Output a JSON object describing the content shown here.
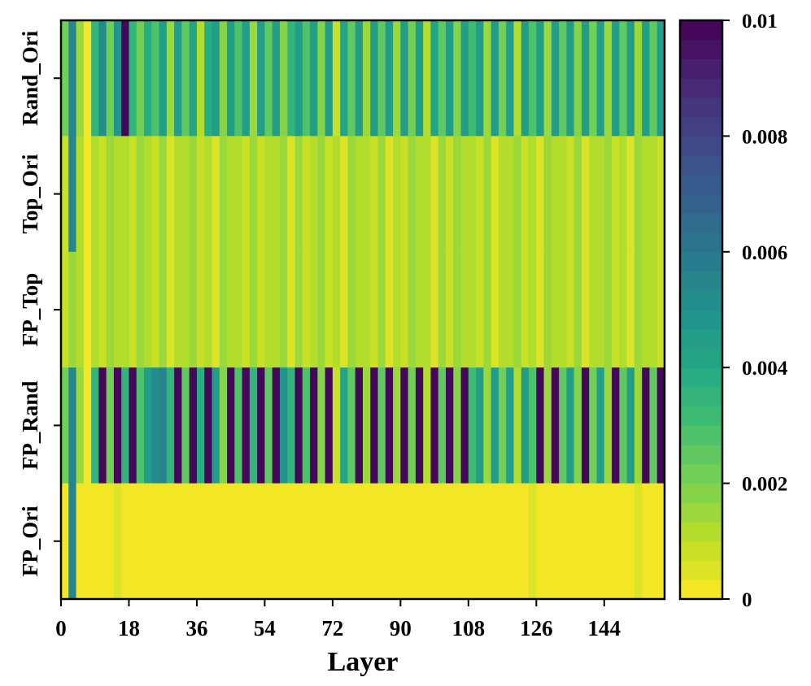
{
  "chart_data": {
    "type": "heatmap",
    "xlabel": "Layer",
    "ylabel": "",
    "x_tick_labels": [
      "0",
      "18",
      "36",
      "54",
      "72",
      "90",
      "108",
      "126",
      "144"
    ],
    "x_tick_values": [
      0,
      18,
      36,
      54,
      72,
      90,
      108,
      126,
      144
    ],
    "xlim": [
      0,
      160
    ],
    "rows": [
      "Rand_Ori",
      "Top_Ori",
      "FP_Top",
      "FP_Rand",
      "FP_Ori"
    ],
    "colorbar": {
      "colormap": "viridis_r",
      "range": [
        0,
        0.01
      ],
      "tick_labels": [
        "0",
        "0.002",
        "0.004",
        "0.006",
        "0.008",
        "0.01"
      ],
      "tick_values": [
        0,
        0.002,
        0.004,
        0.006,
        0.008,
        0.01
      ],
      "levels": 30
    },
    "column_width_layers": 2,
    "values": {
      "Rand_Ori": [
        0.0022,
        0.0055,
        0.0014,
        0.0003,
        0.0034,
        0.0052,
        0.0022,
        0.0048,
        0.01,
        0.0036,
        0.0022,
        0.0038,
        0.0028,
        0.0044,
        0.0016,
        0.0046,
        0.0024,
        0.0042,
        0.0012,
        0.0038,
        0.0046,
        0.0018,
        0.0044,
        0.0028,
        0.0046,
        0.0016,
        0.0044,
        0.0024,
        0.0046,
        0.0018,
        0.0036,
        0.0044,
        0.0028,
        0.0046,
        0.0018,
        0.0046,
        0.0008,
        0.0042,
        0.0026,
        0.0046,
        0.0014,
        0.0044,
        0.0024,
        0.0046,
        0.0016,
        0.0044,
        0.0022,
        0.0044,
        0.0012,
        0.0042,
        0.0026,
        0.0046,
        0.0018,
        0.0044,
        0.0032,
        0.0046,
        0.0014,
        0.0044,
        0.002,
        0.0044,
        0.0012,
        0.0044,
        0.0028,
        0.0046,
        0.0016,
        0.0044,
        0.0024,
        0.0046,
        0.0018,
        0.0044,
        0.0022,
        0.0046,
        0.0014,
        0.0044,
        0.0026,
        0.0046,
        0.0016,
        0.0044,
        0.0024,
        0.0046
      ],
      "Top_Ori": [
        0.0008,
        0.0055,
        0.0011,
        0.0,
        0.0012,
        0.0008,
        0.0016,
        0.001,
        0.0012,
        0.0008,
        0.0016,
        0.001,
        0.0008,
        0.0016,
        0.0006,
        0.0012,
        0.001,
        0.0016,
        0.0008,
        0.0012,
        0.0006,
        0.0016,
        0.001,
        0.0012,
        0.0008,
        0.0016,
        0.0008,
        0.0012,
        0.001,
        0.0016,
        0.0006,
        0.0014,
        0.0008,
        0.0012,
        0.0016,
        0.0008,
        0.0012,
        0.0006,
        0.0016,
        0.001,
        0.0012,
        0.0008,
        0.0016,
        0.0006,
        0.0012,
        0.0008,
        0.0016,
        0.001,
        0.0012,
        0.0006,
        0.0014,
        0.0008,
        0.0016,
        0.001,
        0.0012,
        0.0008,
        0.0016,
        0.0006,
        0.0012,
        0.001,
        0.0016,
        0.0008,
        0.0012,
        0.0006,
        0.0016,
        0.001,
        0.0012,
        0.0008,
        0.0016,
        0.0006,
        0.0012,
        0.001,
        0.0016,
        0.0008,
        0.0012,
        0.0006,
        0.0016,
        0.001,
        0.0012,
        0.0008
      ],
      "FP_Top": [
        0.0008,
        0.0015,
        0.0011,
        0.0,
        0.0012,
        0.0008,
        0.0016,
        0.001,
        0.0012,
        0.0008,
        0.0016,
        0.001,
        0.0008,
        0.0016,
        0.0006,
        0.0012,
        0.001,
        0.0016,
        0.0008,
        0.0012,
        0.0006,
        0.0016,
        0.001,
        0.0012,
        0.0008,
        0.0016,
        0.0008,
        0.0012,
        0.001,
        0.0016,
        0.0006,
        0.0014,
        0.0008,
        0.0012,
        0.0016,
        0.0008,
        0.0012,
        0.0006,
        0.0016,
        0.001,
        0.0012,
        0.0008,
        0.0016,
        0.0006,
        0.0012,
        0.0008,
        0.0016,
        0.001,
        0.0012,
        0.0006,
        0.0014,
        0.0008,
        0.0016,
        0.001,
        0.0012,
        0.0008,
        0.0016,
        0.0006,
        0.0012,
        0.001,
        0.0016,
        0.0008,
        0.0012,
        0.0006,
        0.0016,
        0.001,
        0.0012,
        0.0008,
        0.0016,
        0.0006,
        0.0012,
        0.001,
        0.0016,
        0.0008,
        0.0012,
        0.0006,
        0.0016,
        0.001,
        0.0012,
        0.0008
      ],
      "FP_Rand": [
        0.0022,
        0.0055,
        0.0014,
        0.0003,
        0.0034,
        0.01,
        0.0022,
        0.01,
        0.0036,
        0.01,
        0.0028,
        0.0044,
        0.0052,
        0.0056,
        0.0036,
        0.01,
        0.0024,
        0.01,
        0.0038,
        0.01,
        0.0046,
        0.0018,
        0.01,
        0.0028,
        0.01,
        0.0036,
        0.01,
        0.0024,
        0.01,
        0.0048,
        0.0036,
        0.01,
        0.0028,
        0.01,
        0.0018,
        0.01,
        0.0008,
        0.0042,
        0.0026,
        0.01,
        0.0014,
        0.01,
        0.0024,
        0.01,
        0.0016,
        0.01,
        0.0022,
        0.01,
        0.0012,
        0.01,
        0.0026,
        0.01,
        0.0018,
        0.01,
        0.0032,
        0.0046,
        0.0014,
        0.0044,
        0.002,
        0.0044,
        0.0012,
        0.0044,
        0.0028,
        0.01,
        0.0016,
        0.01,
        0.0024,
        0.0046,
        0.0018,
        0.01,
        0.0022,
        0.0046,
        0.0014,
        0.01,
        0.0026,
        0.0046,
        0.0016,
        0.01,
        0.0024,
        0.01
      ],
      "FP_Ori": [
        0.0002,
        0.0055,
        0.0001,
        0.0,
        0.0002,
        0.0001,
        0.0002,
        0.0004,
        0.0001,
        0.0002,
        0.0001,
        0.0003,
        0.0001,
        0.0002,
        0.0001,
        0.0002,
        0.0003,
        0.0001,
        0.0002,
        0.0001,
        0.0002,
        0.0003,
        0.0001,
        0.0002,
        0.0001,
        0.0002,
        0.0001,
        0.0003,
        0.0002,
        0.0001,
        0.0002,
        0.0001,
        0.0002,
        0.0003,
        0.0001,
        0.0002,
        0.0001,
        0.0002,
        0.0001,
        0.0003,
        0.0002,
        0.0001,
        0.0002,
        0.0001,
        0.0002,
        0.0003,
        0.0001,
        0.0002,
        0.0001,
        0.0002,
        0.0001,
        0.0003,
        0.0002,
        0.0001,
        0.0002,
        0.0001,
        0.0002,
        0.0003,
        0.0001,
        0.0002,
        0.0001,
        0.0002,
        0.0004,
        0.0002,
        0.0001,
        0.0003,
        0.0002,
        0.0001,
        0.0002,
        0.0001,
        0.0002,
        0.0003,
        0.0001,
        0.0002,
        0.0001,
        0.0002,
        0.0004,
        0.0002,
        0.0001,
        0.0002
      ]
    }
  }
}
